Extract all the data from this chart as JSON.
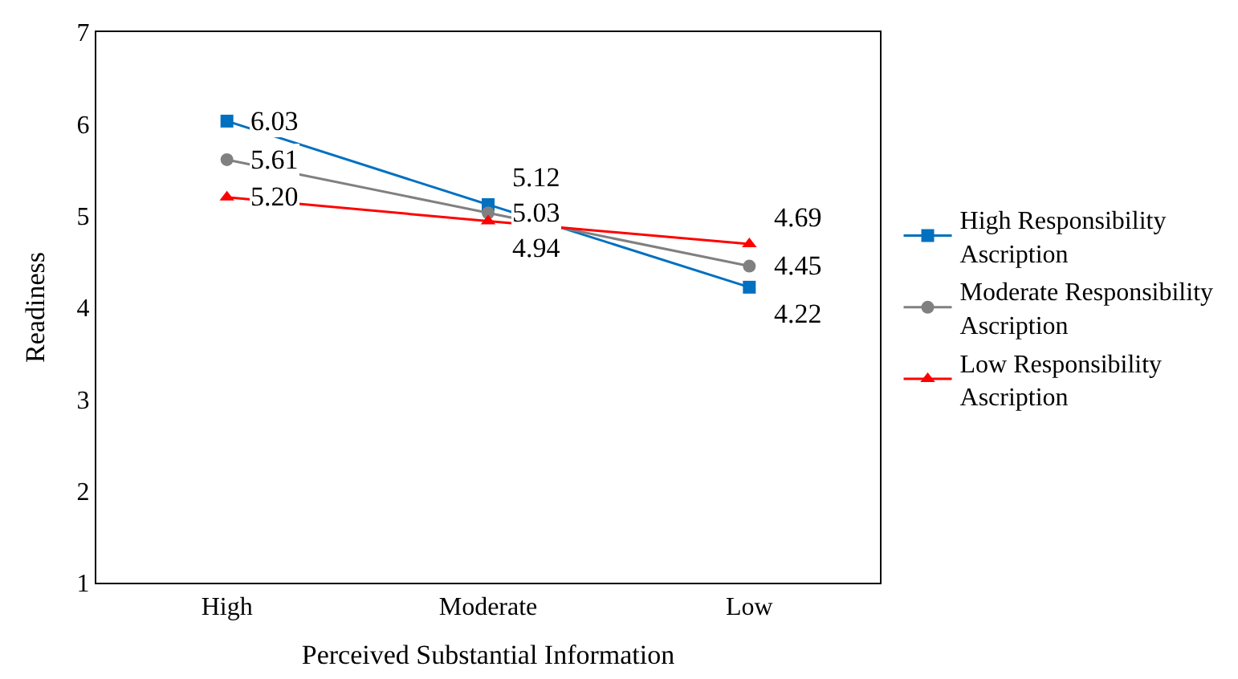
{
  "chart_data": {
    "type": "line",
    "xlabel": "Perceived Substantial Information",
    "ylabel": "Readiness",
    "categories": [
      "High",
      "Moderate",
      "Low"
    ],
    "series": [
      {
        "name": "High Responsibility Ascription",
        "color": "#0070c0",
        "marker": "square",
        "values": [
          6.03,
          5.12,
          4.22
        ],
        "value_labels": [
          "6.03",
          "5.12",
          "4.22"
        ]
      },
      {
        "name": "Moderate Responsibility Ascription",
        "color": "#808080",
        "marker": "circle",
        "values": [
          5.61,
          5.03,
          4.45
        ],
        "value_labels": [
          "5.61",
          "5.03",
          "4.45"
        ]
      },
      {
        "name": "Low Responsibility Ascription",
        "color": "#ff0000",
        "marker": "triangle",
        "values": [
          5.2,
          4.94,
          4.69
        ],
        "value_labels": [
          "5.20",
          "4.94",
          "4.69"
        ]
      }
    ],
    "ylim": [
      1,
      7
    ],
    "yticks": [
      1,
      2,
      3,
      4,
      5,
      6,
      7
    ],
    "legend": "right"
  }
}
